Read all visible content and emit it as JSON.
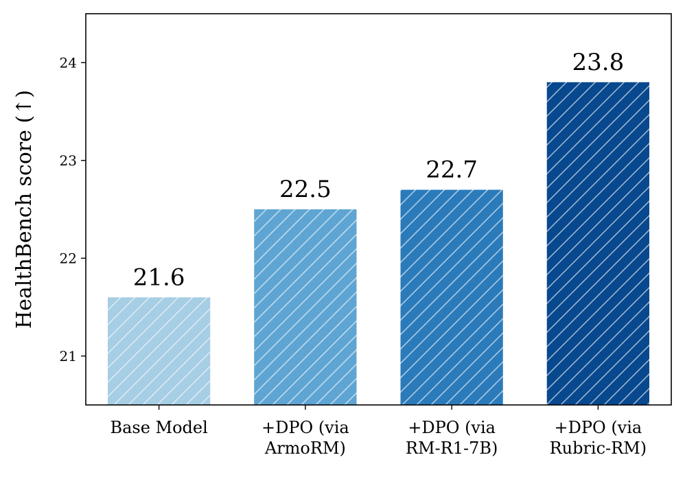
{
  "chart_data": {
    "type": "bar",
    "title": "",
    "xlabel": "",
    "ylabel": "HealthBench score (↑)",
    "ylim": [
      20.5,
      24.5
    ],
    "yticks": [
      21,
      22,
      23,
      24
    ],
    "grid": false,
    "categories": [
      [
        "Base Model"
      ],
      [
        "+DPO (via",
        "ArmoRM)"
      ],
      [
        "+DPO (via",
        "RM-R1-7B)"
      ],
      [
        "+DPO (via",
        "Rubric-RM)"
      ]
    ],
    "values": [
      21.6,
      22.5,
      22.7,
      23.8
    ],
    "data_labels": [
      "21.6",
      "22.5",
      "22.7",
      "23.8"
    ],
    "colors": [
      "#a6cee4",
      "#5fa5d3",
      "#2b7bbb",
      "#08488e"
    ],
    "hatch": "diagonal"
  }
}
